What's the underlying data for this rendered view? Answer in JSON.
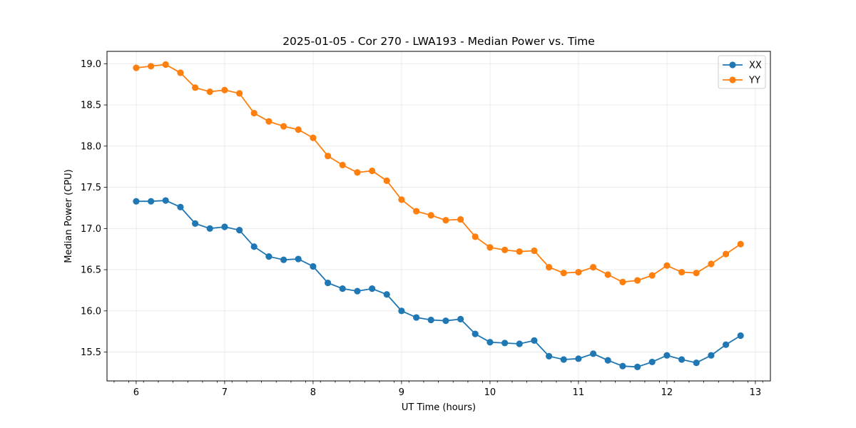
{
  "chart_data": {
    "type": "line",
    "title": "2025-01-05 - Cor 270 - LWA193 - Median Power vs. Time",
    "xlabel": "UT Time (hours)",
    "ylabel": "Median Power (CPU)",
    "xlim": [
      5.67,
      13.17
    ],
    "ylim": [
      15.15,
      19.15
    ],
    "xticks": [
      6,
      7,
      8,
      9,
      10,
      11,
      12,
      13
    ],
    "yticks": [
      "15.5",
      "16.0",
      "16.5",
      "17.0",
      "17.5",
      "18.0",
      "18.5",
      "19.0"
    ],
    "grid": true,
    "legend_position": "top-right",
    "x": [
      6.0,
      6.167,
      6.333,
      6.5,
      6.667,
      6.833,
      7.0,
      7.167,
      7.333,
      7.5,
      7.667,
      7.833,
      8.0,
      8.167,
      8.333,
      8.5,
      8.667,
      8.833,
      9.0,
      9.167,
      9.333,
      9.5,
      9.667,
      9.833,
      10.0,
      10.167,
      10.333,
      10.5,
      10.667,
      10.833,
      11.0,
      11.167,
      11.333,
      11.5,
      11.667,
      11.833,
      12.0,
      12.167,
      12.333,
      12.5,
      12.667,
      12.833
    ],
    "series": [
      {
        "name": "XX",
        "color": "#1f77b4",
        "values": [
          17.33,
          17.33,
          17.34,
          17.26,
          17.06,
          17.0,
          17.02,
          16.98,
          16.78,
          16.66,
          16.62,
          16.63,
          16.54,
          16.34,
          16.27,
          16.24,
          16.27,
          16.2,
          16.0,
          15.92,
          15.89,
          15.88,
          15.9,
          15.72,
          15.62,
          15.61,
          15.6,
          15.64,
          15.45,
          15.41,
          15.42,
          15.48,
          15.4,
          15.33,
          15.32,
          15.38,
          15.46,
          15.41,
          15.37,
          15.46,
          15.59,
          15.7
        ]
      },
      {
        "name": "YY",
        "color": "#ff7f0e",
        "values": [
          18.95,
          18.97,
          18.99,
          18.89,
          18.71,
          18.66,
          18.68,
          18.64,
          18.4,
          18.3,
          18.24,
          18.2,
          18.1,
          17.88,
          17.77,
          17.68,
          17.7,
          17.58,
          17.35,
          17.21,
          17.16,
          17.1,
          17.11,
          16.9,
          16.77,
          16.74,
          16.72,
          16.73,
          16.53,
          16.46,
          16.47,
          16.53,
          16.44,
          16.35,
          16.37,
          16.43,
          16.55,
          16.47,
          16.46,
          16.57,
          16.69,
          16.81
        ]
      }
    ]
  }
}
